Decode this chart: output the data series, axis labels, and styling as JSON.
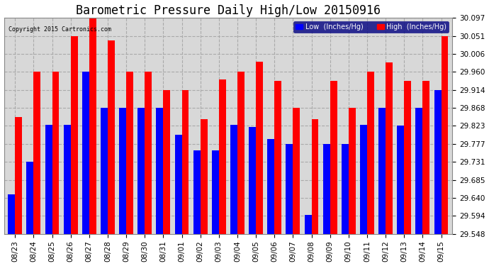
{
  "title": "Barometric Pressure Daily High/Low 20150916",
  "copyright": "Copyright 2015 Cartronics.com",
  "dates": [
    "08/23",
    "08/24",
    "08/25",
    "08/26",
    "08/27",
    "08/28",
    "08/29",
    "08/30",
    "08/31",
    "09/01",
    "09/02",
    "09/03",
    "09/04",
    "09/05",
    "09/06",
    "09/07",
    "09/08",
    "09/09",
    "09/10",
    "09/11",
    "09/12",
    "09/13",
    "09/14",
    "09/15"
  ],
  "low_values": [
    29.648,
    29.731,
    29.825,
    29.825,
    29.96,
    29.868,
    29.868,
    29.868,
    29.868,
    29.8,
    29.76,
    29.76,
    29.825,
    29.82,
    29.79,
    29.777,
    29.597,
    29.777,
    29.777,
    29.825,
    29.868,
    29.823,
    29.868,
    29.914
  ],
  "high_values": [
    29.845,
    29.96,
    29.96,
    30.051,
    30.097,
    30.04,
    29.96,
    29.96,
    29.914,
    29.914,
    29.84,
    29.94,
    29.96,
    29.985,
    29.937,
    29.868,
    29.84,
    29.937,
    29.868,
    29.96,
    29.983,
    29.937,
    29.937,
    30.051
  ],
  "low_color": "#0000ff",
  "high_color": "#ff0000",
  "bg_color": "#ffffff",
  "plot_bg_color": "#d8d8d8",
  "grid_color": "#aaaaaa",
  "ylim_min": 29.548,
  "ylim_max": 30.097,
  "yticks": [
    29.548,
    29.594,
    29.64,
    29.685,
    29.731,
    29.777,
    29.823,
    29.868,
    29.914,
    29.96,
    30.006,
    30.051,
    30.097
  ],
  "title_fontsize": 12,
  "tick_fontsize": 7.5,
  "legend_low_label": "Low  (Inches/Hg)",
  "legend_high_label": "High  (Inches/Hg)"
}
